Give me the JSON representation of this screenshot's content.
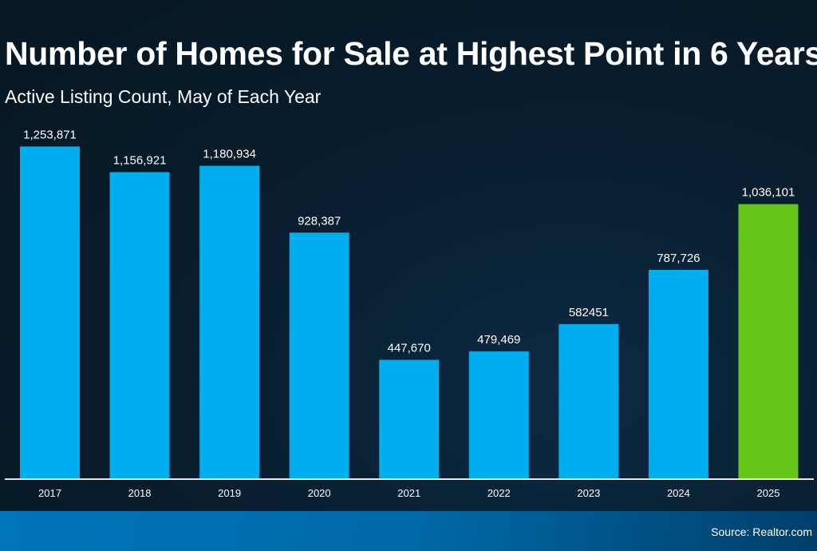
{
  "chart_data": {
    "type": "bar",
    "title": "Number of Homes for Sale at Highest Point in 6 Years",
    "subtitle": "Active Listing Count, May of Each Year",
    "categories": [
      "2017",
      "2018",
      "2019",
      "2020",
      "2021",
      "2022",
      "2023",
      "2024",
      "2025"
    ],
    "values": [
      1253871,
      1156921,
      1180934,
      928387,
      447670,
      479469,
      582451,
      787726,
      1036101
    ],
    "data_labels": [
      "1,253,871",
      "1,156,921",
      "1,180,934",
      "928,387",
      "447,670",
      "479,469",
      "582451",
      "787,726",
      "1,036,101"
    ],
    "colors": [
      "#00adef",
      "#00adef",
      "#00adef",
      "#00adef",
      "#00adef",
      "#00adef",
      "#00adef",
      "#00adef",
      "#66c61c"
    ],
    "xlabel": "",
    "ylabel": "",
    "ylim": [
      0,
      1400000
    ],
    "grid": false,
    "legend": "none"
  },
  "footer": {
    "source": "Source: Realtor.com"
  }
}
